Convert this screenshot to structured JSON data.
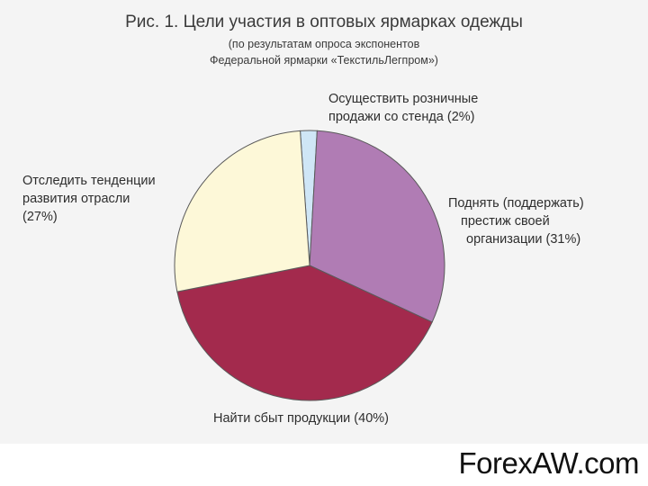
{
  "chart_data": {
    "type": "pie",
    "title": "Рис. 1. Цели участия в оптовых ярмарках одежды",
    "subtitle_lines": [
      "(по результатам опроса экспонентов",
      "Федеральной ярмарки «ТекстильЛегпром»)"
    ],
    "slices": [
      {
        "label_lines": [
          "Осуществить розничные",
          "продажи со стенда (2%)"
        ],
        "value": 2,
        "color": "#cfe6f6"
      },
      {
        "label_lines": [
          "Поднять (поддержать)",
          "престиж своей",
          "организации (31%)"
        ],
        "value": 31,
        "color": "#b07cb4"
      },
      {
        "label_lines": [
          "Найти сбыт продукции (40%)"
        ],
        "value": 40,
        "color": "#a32a4d"
      },
      {
        "label_lines": [
          "Отследить тенденции",
          "развития отрасли",
          "(27%)"
        ],
        "value": 27,
        "color": "#fdf8d8"
      }
    ]
  },
  "watermark": "ForexAW.com"
}
